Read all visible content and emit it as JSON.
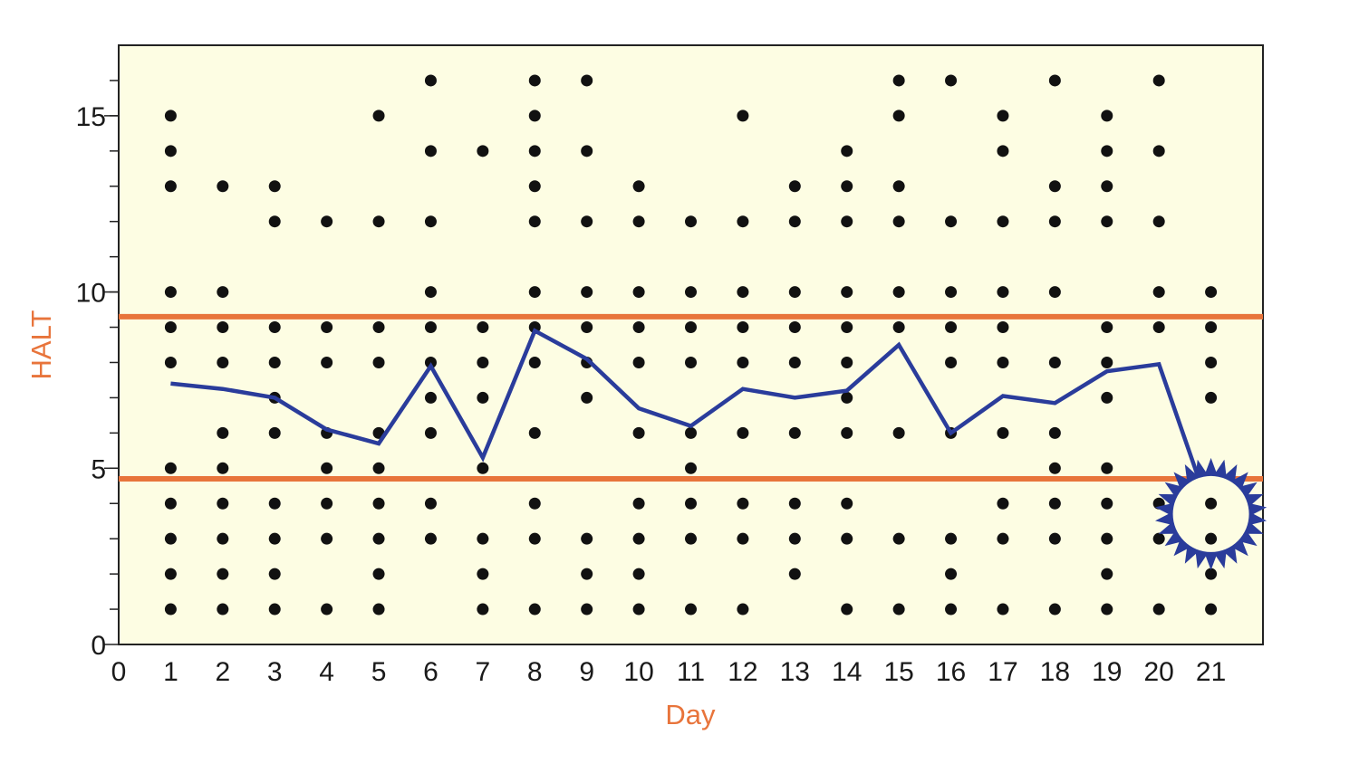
{
  "chart_data": {
    "type": "scatter",
    "xlabel": "Day",
    "ylabel": "HALT",
    "xlim": [
      0,
      22
    ],
    "ylim": [
      0,
      17
    ],
    "x_ticks": [
      "0",
      "1",
      "2",
      "3",
      "4",
      "5",
      "6",
      "7",
      "8",
      "9",
      "10",
      "11",
      "12",
      "13",
      "14",
      "15",
      "16",
      "17",
      "18",
      "19",
      "20",
      "21"
    ],
    "y_tick_labels": [
      {
        "value": 0,
        "label": "0"
      },
      {
        "value": 5,
        "label": "5"
      },
      {
        "value": 10,
        "label": "10"
      },
      {
        "value": 15,
        "label": "15"
      }
    ],
    "y_minor_ticks": [
      1,
      2,
      3,
      4,
      5,
      6,
      7,
      8,
      9,
      10,
      11,
      12,
      13,
      14,
      15,
      16
    ],
    "points": [
      {
        "day": 1,
        "values": [
          1,
          2,
          3,
          4,
          5,
          8,
          9,
          10,
          13,
          14,
          15
        ]
      },
      {
        "day": 2,
        "values": [
          1,
          2,
          3,
          4,
          5,
          6,
          8,
          9,
          10,
          13
        ]
      },
      {
        "day": 3,
        "values": [
          1,
          2,
          3,
          4,
          6,
          7,
          8,
          9,
          12,
          13
        ]
      },
      {
        "day": 4,
        "values": [
          1,
          3,
          4,
          5,
          6,
          8,
          9,
          12
        ]
      },
      {
        "day": 5,
        "values": [
          1,
          2,
          3,
          4,
          5,
          6,
          8,
          9,
          12,
          15
        ]
      },
      {
        "day": 6,
        "values": [
          3,
          4,
          6,
          7,
          8,
          9,
          10,
          12,
          14,
          16
        ]
      },
      {
        "day": 7,
        "values": [
          1,
          2,
          3,
          5,
          7,
          8,
          9,
          14
        ]
      },
      {
        "day": 8,
        "values": [
          1,
          3,
          4,
          6,
          8,
          9,
          10,
          12,
          13,
          14,
          15,
          16
        ]
      },
      {
        "day": 9,
        "values": [
          1,
          2,
          3,
          7,
          8,
          9,
          10,
          12,
          14,
          16
        ]
      },
      {
        "day": 10,
        "values": [
          1,
          2,
          3,
          4,
          6,
          8,
          9,
          10,
          12,
          13
        ]
      },
      {
        "day": 11,
        "values": [
          1,
          3,
          4,
          5,
          6,
          8,
          9,
          10,
          12
        ]
      },
      {
        "day": 12,
        "values": [
          1,
          3,
          4,
          6,
          8,
          9,
          10,
          12,
          15
        ]
      },
      {
        "day": 13,
        "values": [
          2,
          3,
          4,
          6,
          8,
          9,
          10,
          12,
          13
        ]
      },
      {
        "day": 14,
        "values": [
          1,
          3,
          4,
          6,
          7,
          8,
          9,
          10,
          12,
          13,
          14
        ]
      },
      {
        "day": 15,
        "values": [
          1,
          3,
          6,
          9,
          10,
          12,
          13,
          15,
          16
        ]
      },
      {
        "day": 16,
        "values": [
          1,
          2,
          3,
          6,
          8,
          9,
          10,
          12,
          16
        ]
      },
      {
        "day": 17,
        "values": [
          1,
          3,
          4,
          6,
          8,
          9,
          10,
          12,
          14,
          15
        ]
      },
      {
        "day": 18,
        "values": [
          1,
          3,
          4,
          5,
          6,
          8,
          10,
          12,
          13,
          16
        ]
      },
      {
        "day": 19,
        "values": [
          1,
          2,
          3,
          4,
          5,
          7,
          8,
          9,
          12,
          13,
          14,
          15
        ]
      },
      {
        "day": 20,
        "values": [
          1,
          3,
          4,
          9,
          10,
          12,
          14,
          16
        ]
      },
      {
        "day": 21,
        "values": [
          1,
          2,
          3,
          4,
          7,
          8,
          9,
          10
        ]
      }
    ],
    "mean_line": {
      "x": [
        1,
        2,
        3,
        4,
        5,
        6,
        7,
        8,
        9,
        10,
        11,
        12,
        13,
        14,
        15,
        16,
        17,
        18,
        19,
        20,
        21
      ],
      "y": [
        7.4,
        7.25,
        7.0,
        6.1,
        5.7,
        7.9,
        5.3,
        8.9,
        8.1,
        6.7,
        6.2,
        7.25,
        7.0,
        7.2,
        8.5,
        6.0,
        7.05,
        6.85,
        7.75,
        7.95,
        3.7
      ]
    },
    "control_limits": {
      "upper": 9.3,
      "lower": 4.7
    },
    "highlight": {
      "day": 21,
      "value": 3.7,
      "shape": "starburst"
    },
    "grid": false,
    "legend": "none",
    "colors": {
      "plot_background": "#fdfde3",
      "dots": "#111111",
      "mean_line": "#2a3c9b",
      "control_limits": "#e8743b",
      "axis_title": "#e8743b",
      "starburst": "#2a3c9b"
    }
  }
}
